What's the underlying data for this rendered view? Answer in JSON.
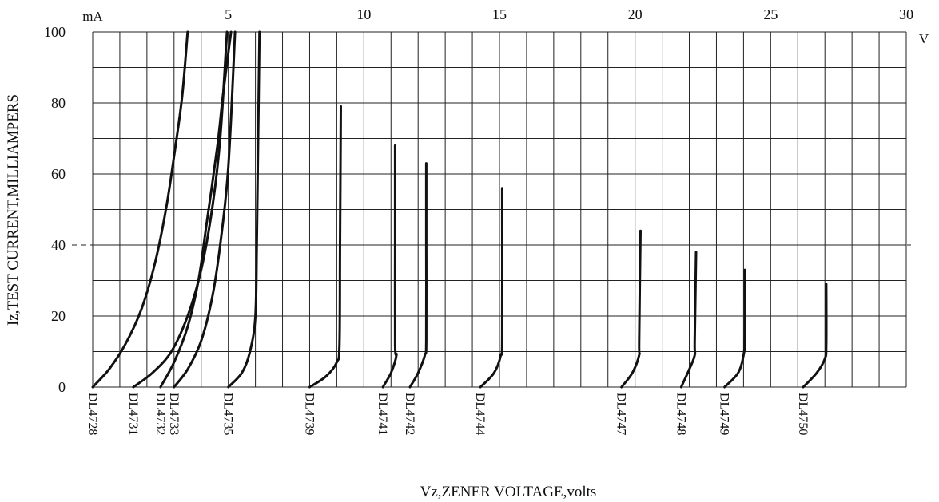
{
  "chart_data": {
    "type": "line",
    "xlabel": "Vz,ZENER VOLTAGE,volts",
    "ylabel": "Iz,TEST CURRENT,MILLIAMPERS",
    "x_unit": "V",
    "y_unit": "mA",
    "xlim": [
      0,
      30
    ],
    "ylim": [
      0,
      100
    ],
    "x_ticks": [
      5,
      10,
      15,
      20,
      25,
      30
    ],
    "y_ticks": [
      0,
      20,
      40,
      60,
      80,
      100
    ],
    "grid": true,
    "reference_line_y": 40,
    "series": [
      {
        "name": "DL4728",
        "points": [
          [
            0.0,
            0
          ],
          [
            0.6,
            5
          ],
          [
            1.2,
            12
          ],
          [
            1.8,
            22
          ],
          [
            2.3,
            35
          ],
          [
            2.7,
            50
          ],
          [
            3.0,
            65
          ],
          [
            3.3,
            82
          ],
          [
            3.5,
            100
          ]
        ]
      },
      {
        "name": "DL4731",
        "points": [
          [
            1.5,
            0
          ],
          [
            2.2,
            4
          ],
          [
            2.9,
            10
          ],
          [
            3.5,
            20
          ],
          [
            4.0,
            33
          ],
          [
            4.4,
            50
          ],
          [
            4.7,
            70
          ],
          [
            4.95,
            100
          ]
        ]
      },
      {
        "name": "DL4732",
        "points": [
          [
            2.5,
            0
          ],
          [
            3.0,
            7
          ],
          [
            3.5,
            17
          ],
          [
            3.9,
            30
          ],
          [
            4.2,
            46
          ],
          [
            4.6,
            68
          ],
          [
            4.8,
            82
          ],
          [
            5.1,
            100
          ]
        ]
      },
      {
        "name": "DL4733",
        "points": [
          [
            3.0,
            0
          ],
          [
            3.5,
            5
          ],
          [
            4.0,
            13
          ],
          [
            4.4,
            25
          ],
          [
            4.7,
            40
          ],
          [
            5.0,
            62
          ],
          [
            5.25,
            100
          ]
        ]
      },
      {
        "name": "DL4735",
        "points": [
          [
            5.0,
            0
          ],
          [
            5.5,
            4
          ],
          [
            5.8,
            10
          ],
          [
            6.0,
            20
          ],
          [
            6.05,
            40
          ],
          [
            6.1,
            70
          ],
          [
            6.15,
            100
          ]
        ]
      },
      {
        "name": "DL4739",
        "points": [
          [
            8.0,
            0
          ],
          [
            8.6,
            3
          ],
          [
            9.0,
            7
          ],
          [
            9.1,
            12
          ],
          [
            9.12,
            40
          ],
          [
            9.15,
            79
          ]
        ]
      },
      {
        "name": "DL4741",
        "points": [
          [
            10.7,
            0
          ],
          [
            11.0,
            4
          ],
          [
            11.2,
            9
          ],
          [
            11.15,
            12
          ],
          [
            11.15,
            40
          ],
          [
            11.15,
            68
          ]
        ]
      },
      {
        "name": "DL4742",
        "points": [
          [
            11.7,
            0
          ],
          [
            12.0,
            4
          ],
          [
            12.25,
            9
          ],
          [
            12.3,
            13
          ],
          [
            12.3,
            40
          ],
          [
            12.3,
            63
          ]
        ]
      },
      {
        "name": "DL4744",
        "points": [
          [
            14.3,
            0
          ],
          [
            14.8,
            4
          ],
          [
            15.05,
            9
          ],
          [
            15.1,
            14
          ],
          [
            15.1,
            56
          ]
        ]
      },
      {
        "name": "DL4747",
        "points": [
          [
            19.5,
            0
          ],
          [
            19.9,
            4
          ],
          [
            20.15,
            9
          ],
          [
            20.15,
            13
          ],
          [
            20.2,
            44
          ]
        ]
      },
      {
        "name": "DL4748",
        "points": [
          [
            21.7,
            0
          ],
          [
            22.0,
            5
          ],
          [
            22.2,
            9
          ],
          [
            22.2,
            13
          ],
          [
            22.25,
            38
          ]
        ]
      },
      {
        "name": "DL4749",
        "points": [
          [
            23.3,
            0
          ],
          [
            23.8,
            4
          ],
          [
            24.0,
            9
          ],
          [
            24.05,
            14
          ],
          [
            24.05,
            33
          ]
        ]
      },
      {
        "name": "DL4750",
        "points": [
          [
            26.2,
            0
          ],
          [
            26.7,
            4
          ],
          [
            27.0,
            8
          ],
          [
            27.05,
            12
          ],
          [
            27.05,
            29
          ]
        ]
      }
    ]
  }
}
